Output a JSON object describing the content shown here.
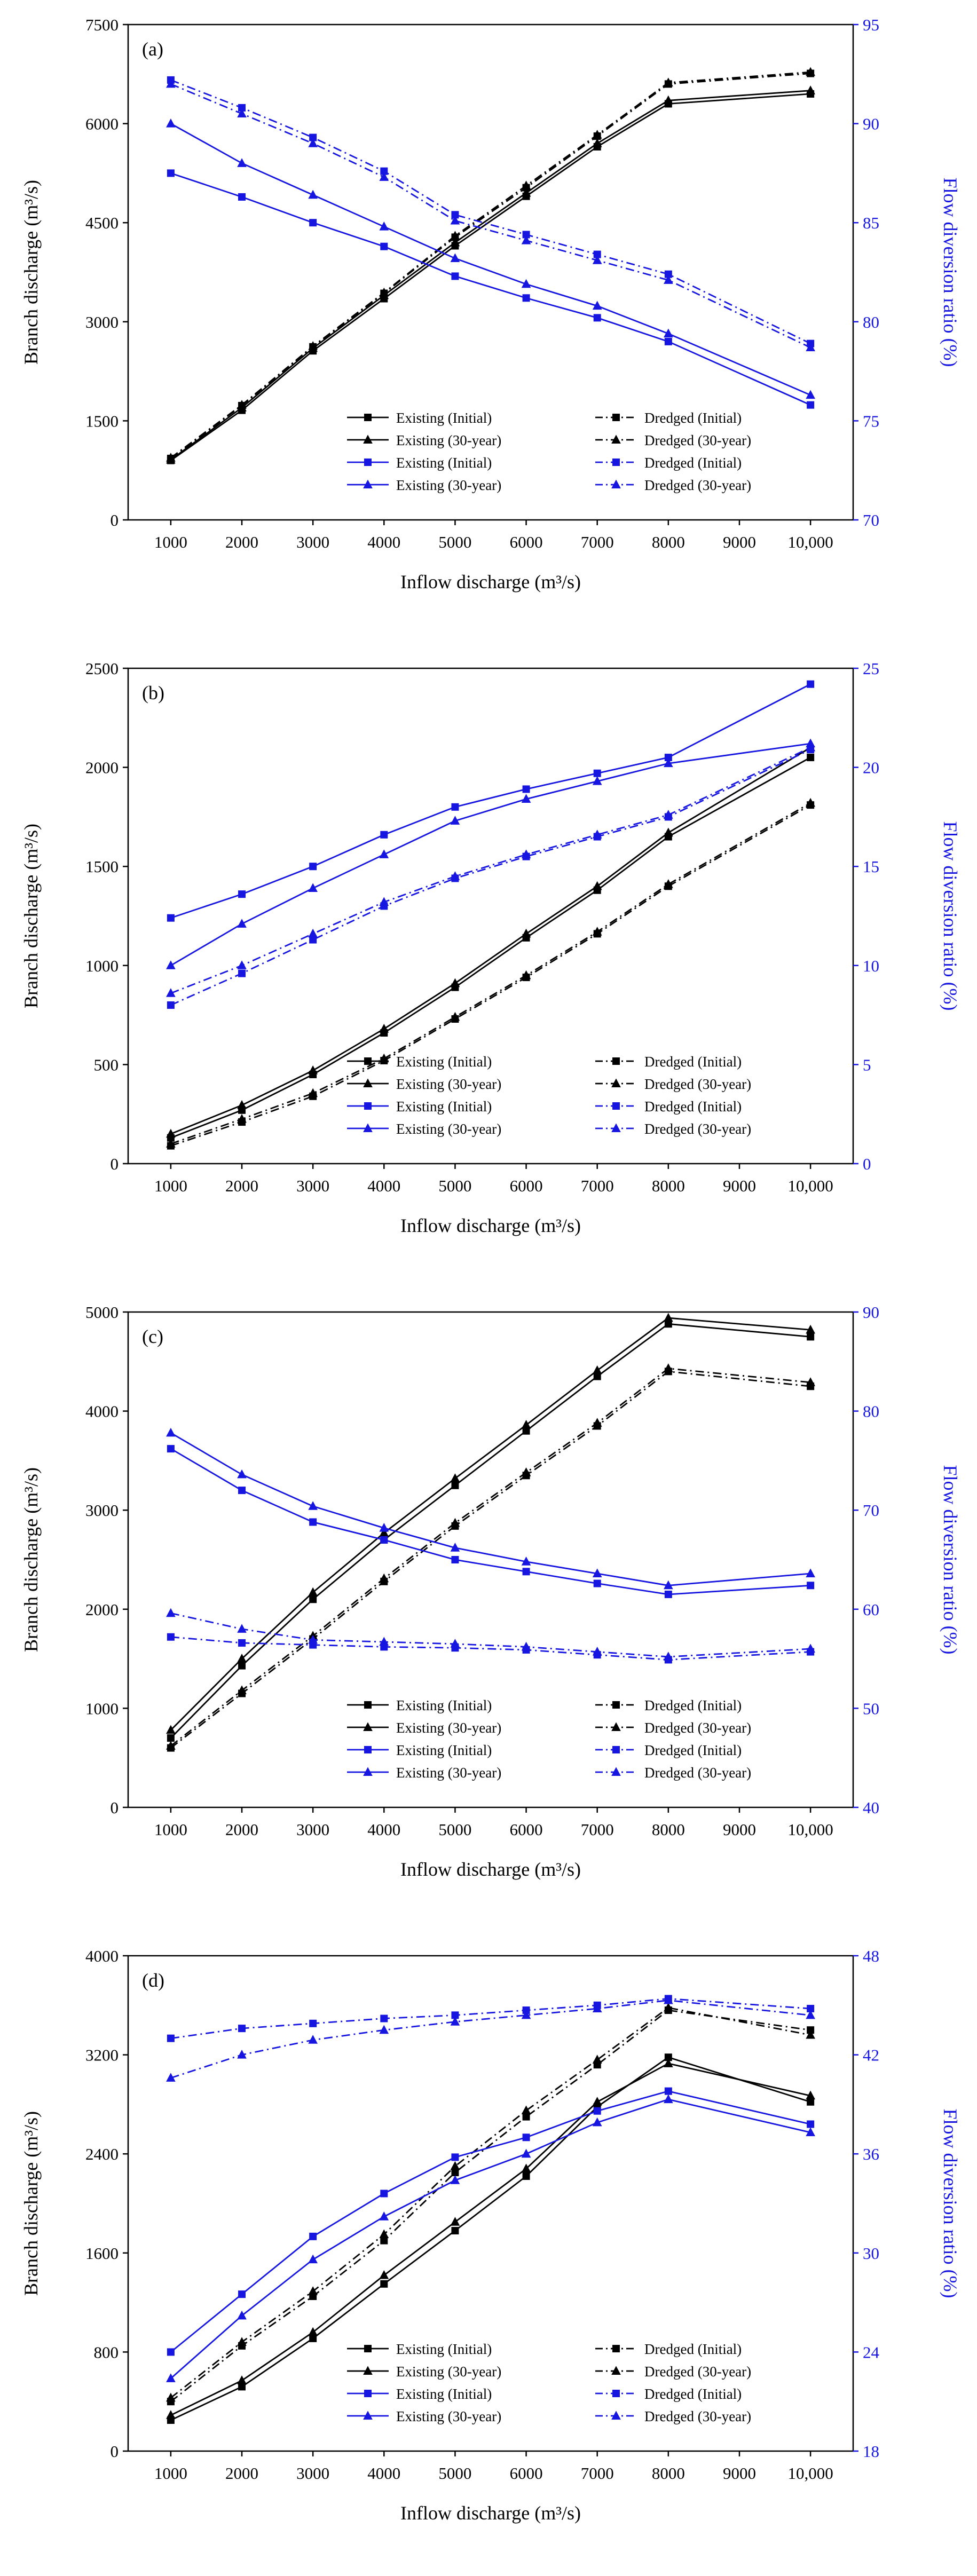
{
  "figure": {
    "xlabel": "Inflow discharge (m³/s)",
    "ylabel_left": "Branch discharge (m³/s)",
    "ylabel_right": "Flow diversion ratio (%)",
    "colors": {
      "black": "#000000",
      "blue": "#1616e0"
    }
  },
  "chart_data": [
    {
      "type": "line",
      "panel_label": "(a)",
      "xlabel": "Inflow discharge (m³/s)",
      "x": [
        1000,
        2000,
        3000,
        4000,
        5000,
        6000,
        7000,
        8000,
        10000
      ],
      "x_range": [
        400,
        10600
      ],
      "x_ticks": [
        1000,
        2000,
        3000,
        4000,
        5000,
        6000,
        7000,
        8000,
        9000,
        10000
      ],
      "x_tick_labels": [
        "1000",
        "2000",
        "3000",
        "4000",
        "5000",
        "6000",
        "7000",
        "8000",
        "9000",
        "10,000"
      ],
      "left_axis": {
        "label": "Branch discharge (m³/s)",
        "range": [
          0,
          7500
        ],
        "ticks": [
          0,
          1500,
          3000,
          4500,
          6000,
          7500
        ]
      },
      "right_axis": {
        "label": "Flow diversion ratio (%)",
        "range": [
          70,
          95
        ],
        "ticks": [
          70,
          75,
          80,
          85,
          90,
          95
        ]
      },
      "grid": false,
      "legend_position": "lower right",
      "series": [
        {
          "label": "Existing (Initial)",
          "axis": "left",
          "color": "black",
          "line": "solid",
          "marker": "square",
          "values": [
            900,
            1660,
            2560,
            3350,
            4150,
            4900,
            5650,
            6300,
            6450
          ]
        },
        {
          "label": "Dredged (Initial)",
          "axis": "left",
          "color": "black",
          "line": "dashdot",
          "marker": "square",
          "values": [
            930,
            1730,
            2620,
            3430,
            4280,
            5030,
            5810,
            6600,
            6760
          ]
        },
        {
          "label": "Existing (30-year)",
          "axis": "left",
          "color": "black",
          "line": "solid",
          "marker": "triangle",
          "values": [
            910,
            1700,
            2600,
            3400,
            4200,
            4950,
            5700,
            6350,
            6500
          ]
        },
        {
          "label": "Dredged (30-year)",
          "axis": "left",
          "color": "black",
          "line": "dashdot",
          "marker": "triangle",
          "values": [
            940,
            1740,
            2630,
            3440,
            4300,
            5060,
            5830,
            6620,
            6780
          ]
        },
        {
          "label": "Existing (Initial)",
          "axis": "right",
          "color": "blue",
          "line": "solid",
          "marker": "square",
          "values": [
            87.5,
            86.3,
            85.0,
            83.8,
            82.3,
            81.2,
            80.2,
            79.0,
            75.8
          ]
        },
        {
          "label": "Dredged (Initial)",
          "axis": "right",
          "color": "blue",
          "line": "dashdot",
          "marker": "square",
          "values": [
            92.2,
            90.8,
            89.3,
            87.6,
            85.4,
            84.4,
            83.4,
            82.4,
            78.9
          ]
        },
        {
          "label": "Existing (30-year)",
          "axis": "right",
          "color": "blue",
          "line": "solid",
          "marker": "triangle",
          "values": [
            90.0,
            88.0,
            86.4,
            84.8,
            83.2,
            81.9,
            80.8,
            79.4,
            76.3
          ]
        },
        {
          "label": "Dredged (30-year)",
          "axis": "right",
          "color": "blue",
          "line": "dashdot",
          "marker": "triangle",
          "values": [
            92.0,
            90.5,
            89.0,
            87.3,
            85.1,
            84.1,
            83.1,
            82.1,
            78.7
          ]
        }
      ]
    },
    {
      "type": "line",
      "panel_label": "(b)",
      "xlabel": "Inflow discharge (m³/s)",
      "x": [
        1000,
        2000,
        3000,
        4000,
        5000,
        6000,
        7000,
        8000,
        10000
      ],
      "x_range": [
        400,
        10600
      ],
      "x_ticks": [
        1000,
        2000,
        3000,
        4000,
        5000,
        6000,
        7000,
        8000,
        9000,
        10000
      ],
      "x_tick_labels": [
        "1000",
        "2000",
        "3000",
        "4000",
        "5000",
        "6000",
        "7000",
        "8000",
        "9000",
        "10,000"
      ],
      "left_axis": {
        "label": "Branch discharge (m³/s)",
        "range": [
          0,
          2500
        ],
        "ticks": [
          0,
          500,
          1000,
          1500,
          2000,
          2500
        ]
      },
      "right_axis": {
        "label": "Flow diversion ratio (%)",
        "range": [
          0,
          25
        ],
        "ticks": [
          0,
          5,
          10,
          15,
          20,
          25
        ]
      },
      "grid": false,
      "legend_position": "lower right",
      "series": [
        {
          "label": "Existing (Initial)",
          "axis": "left",
          "color": "black",
          "line": "solid",
          "marker": "square",
          "values": [
            130,
            270,
            450,
            660,
            890,
            1140,
            1380,
            1650,
            2050
          ]
        },
        {
          "label": "Dredged (Initial)",
          "axis": "left",
          "color": "black",
          "line": "dashdot",
          "marker": "square",
          "values": [
            90,
            210,
            340,
            520,
            730,
            940,
            1160,
            1400,
            1810
          ]
        },
        {
          "label": "Existing (30-year)",
          "axis": "left",
          "color": "black",
          "line": "solid",
          "marker": "triangle",
          "values": [
            150,
            295,
            470,
            680,
            910,
            1160,
            1400,
            1670,
            2100
          ]
        },
        {
          "label": "Dredged (30-year)",
          "axis": "left",
          "color": "black",
          "line": "dashdot",
          "marker": "triangle",
          "values": [
            100,
            225,
            355,
            530,
            740,
            950,
            1170,
            1410,
            1820
          ]
        },
        {
          "label": "Existing (Initial)",
          "axis": "right",
          "color": "blue",
          "line": "solid",
          "marker": "square",
          "values": [
            12.4,
            13.6,
            15.0,
            16.6,
            18.0,
            18.9,
            19.7,
            20.5,
            24.2
          ]
        },
        {
          "label": "Dredged (Initial)",
          "axis": "right",
          "color": "blue",
          "line": "dashdot",
          "marker": "square",
          "values": [
            8.0,
            9.6,
            11.3,
            13.0,
            14.4,
            15.5,
            16.5,
            17.5,
            20.9
          ]
        },
        {
          "label": "Existing (30-year)",
          "axis": "right",
          "color": "blue",
          "line": "solid",
          "marker": "triangle",
          "values": [
            10.0,
            12.1,
            13.9,
            15.6,
            17.3,
            18.4,
            19.3,
            20.2,
            21.2
          ]
        },
        {
          "label": "Dredged (30-year)",
          "axis": "right",
          "color": "blue",
          "line": "dashdot",
          "marker": "triangle",
          "values": [
            8.6,
            10.0,
            11.6,
            13.2,
            14.5,
            15.6,
            16.6,
            17.6,
            21.0
          ]
        }
      ]
    },
    {
      "type": "line",
      "panel_label": "(c)",
      "xlabel": "Inflow discharge (m³/s)",
      "x": [
        1000,
        2000,
        3000,
        4000,
        5000,
        6000,
        7000,
        8000,
        10000
      ],
      "x_range": [
        400,
        10600
      ],
      "x_ticks": [
        1000,
        2000,
        3000,
        4000,
        5000,
        6000,
        7000,
        8000,
        9000,
        10000
      ],
      "x_tick_labels": [
        "1000",
        "2000",
        "3000",
        "4000",
        "5000",
        "6000",
        "7000",
        "8000",
        "9000",
        "10,000"
      ],
      "left_axis": {
        "label": "Branch discharge (m³/s)",
        "range": [
          0,
          5000
        ],
        "ticks": [
          0,
          1000,
          2000,
          3000,
          4000,
          5000
        ]
      },
      "right_axis": {
        "label": "Flow diversion ratio (%)",
        "range": [
          40,
          90
        ],
        "ticks": [
          40,
          50,
          60,
          70,
          80,
          90
        ]
      },
      "grid": false,
      "legend_position": "lower right",
      "series": [
        {
          "label": "Existing (Initial)",
          "axis": "left",
          "color": "black",
          "line": "solid",
          "marker": "square",
          "values": [
            700,
            1430,
            2100,
            2700,
            3250,
            3800,
            4350,
            4880,
            4750
          ]
        },
        {
          "label": "Dredged (Initial)",
          "axis": "left",
          "color": "black",
          "line": "dashdot",
          "marker": "square",
          "values": [
            600,
            1150,
            1700,
            2280,
            2840,
            3350,
            3850,
            4400,
            4250
          ]
        },
        {
          "label": "Existing (30-year)",
          "axis": "left",
          "color": "black",
          "line": "solid",
          "marker": "triangle",
          "values": [
            780,
            1500,
            2170,
            2770,
            3320,
            3860,
            4410,
            4940,
            4820
          ]
        },
        {
          "label": "Dredged (30-year)",
          "axis": "left",
          "color": "black",
          "line": "dashdot",
          "marker": "triangle",
          "values": [
            620,
            1180,
            1730,
            2310,
            2870,
            3380,
            3880,
            4430,
            4290
          ]
        },
        {
          "label": "Existing (Initial)",
          "axis": "right",
          "color": "blue",
          "line": "solid",
          "marker": "square",
          "values": [
            76.2,
            72.0,
            68.8,
            67.0,
            65.0,
            63.8,
            62.6,
            61.5,
            62.4
          ]
        },
        {
          "label": "Dredged (Initial)",
          "axis": "right",
          "color": "blue",
          "line": "dashdot",
          "marker": "square",
          "values": [
            57.2,
            56.6,
            56.4,
            56.2,
            56.1,
            55.9,
            55.4,
            54.9,
            55.7
          ]
        },
        {
          "label": "Existing (30-year)",
          "axis": "right",
          "color": "blue",
          "line": "solid",
          "marker": "triangle",
          "values": [
            77.8,
            73.6,
            70.4,
            68.2,
            66.2,
            64.8,
            63.6,
            62.4,
            63.6
          ]
        },
        {
          "label": "Dredged (30-year)",
          "axis": "right",
          "color": "blue",
          "line": "dashdot",
          "marker": "triangle",
          "values": [
            59.6,
            58.0,
            56.9,
            56.7,
            56.5,
            56.2,
            55.7,
            55.2,
            56.0
          ]
        }
      ]
    },
    {
      "type": "line",
      "panel_label": "(d)",
      "xlabel": "Inflow discharge (m³/s)",
      "x": [
        1000,
        2000,
        3000,
        4000,
        5000,
        6000,
        7000,
        8000,
        10000
      ],
      "x_range": [
        400,
        10600
      ],
      "x_ticks": [
        1000,
        2000,
        3000,
        4000,
        5000,
        6000,
        7000,
        8000,
        9000,
        10000
      ],
      "x_tick_labels": [
        "1000",
        "2000",
        "3000",
        "4000",
        "5000",
        "6000",
        "7000",
        "8000",
        "9000",
        "10,000"
      ],
      "left_axis": {
        "label": "Branch discharge (m³/s)",
        "range": [
          0,
          4000
        ],
        "ticks": [
          0,
          800,
          1600,
          2400,
          3200,
          4000
        ]
      },
      "right_axis": {
        "label": "Flow diversion ratio (%)",
        "range": [
          18,
          48
        ],
        "ticks": [
          18,
          24,
          30,
          36,
          42,
          48
        ]
      },
      "grid": false,
      "legend_position": "lower right",
      "series": [
        {
          "label": "Existing (Initial)",
          "axis": "left",
          "color": "black",
          "line": "solid",
          "marker": "square",
          "values": [
            250,
            520,
            910,
            1350,
            1780,
            2220,
            2780,
            3180,
            2820
          ]
        },
        {
          "label": "Dredged (Initial)",
          "axis": "left",
          "color": "black",
          "line": "dashdot",
          "marker": "square",
          "values": [
            400,
            850,
            1250,
            1700,
            2250,
            2700,
            3120,
            3560,
            3400
          ]
        },
        {
          "label": "Existing (30-year)",
          "axis": "left",
          "color": "black",
          "line": "solid",
          "marker": "triangle",
          "values": [
            290,
            570,
            960,
            1420,
            1850,
            2280,
            2820,
            3130,
            2870
          ]
        },
        {
          "label": "Dredged (30-year)",
          "axis": "left",
          "color": "black",
          "line": "dashdot",
          "marker": "triangle",
          "values": [
            430,
            880,
            1290,
            1750,
            2300,
            2750,
            3160,
            3580,
            3360
          ]
        },
        {
          "label": "Existing (Initial)",
          "axis": "right",
          "color": "blue",
          "line": "solid",
          "marker": "square",
          "values": [
            24.0,
            27.5,
            31.0,
            33.6,
            35.8,
            37.0,
            38.6,
            39.8,
            37.8
          ]
        },
        {
          "label": "Dredged (Initial)",
          "axis": "right",
          "color": "blue",
          "line": "dashdot",
          "marker": "square",
          "values": [
            43.0,
            43.6,
            43.9,
            44.2,
            44.4,
            44.7,
            45.0,
            45.4,
            44.8
          ]
        },
        {
          "label": "Existing (30-year)",
          "axis": "right",
          "color": "blue",
          "line": "solid",
          "marker": "triangle",
          "values": [
            22.4,
            26.2,
            29.6,
            32.2,
            34.4,
            36.0,
            37.9,
            39.3,
            37.3
          ]
        },
        {
          "label": "Dredged (30-year)",
          "axis": "right",
          "color": "blue",
          "line": "dashdot",
          "marker": "triangle",
          "values": [
            40.6,
            42.0,
            42.9,
            43.5,
            44.0,
            44.4,
            44.8,
            45.3,
            44.4
          ]
        }
      ]
    }
  ]
}
